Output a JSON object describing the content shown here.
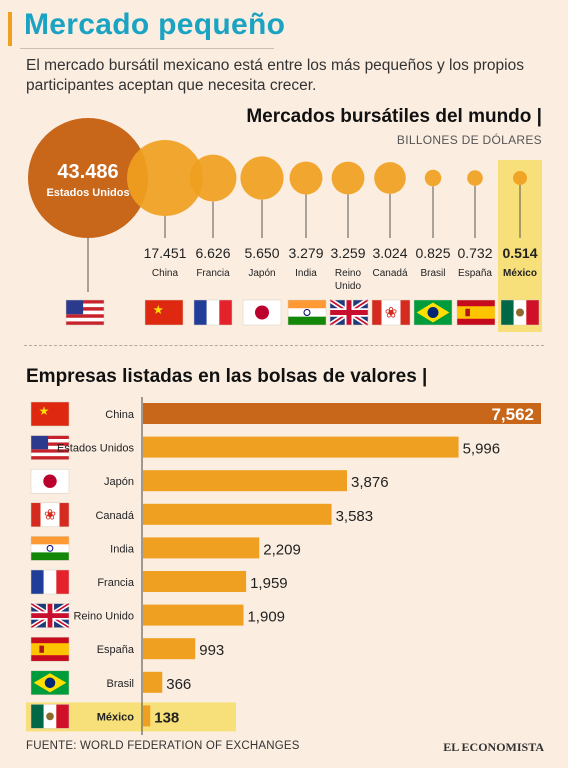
{
  "header": {
    "title": "Mercado pequeño",
    "subtitle": "El mercado bursátil mexicano está entre los más pequeños y los propios participantes aceptan que necesita crecer."
  },
  "section1": {
    "title": "Mercados bursátiles del mundo |",
    "unit": "BILLONES DE DÓLARES"
  },
  "section2": {
    "title": "Empresas listadas en las bolsas de valores |"
  },
  "footer": {
    "source": "FUENTE: WORLD FEDERATION OF EXCHANGES",
    "brand": "EL ECONOMISTA"
  },
  "colors": {
    "bubble": "#f0a020",
    "largest": "#c8661a",
    "highlight": "#f7e07a",
    "background": "#fbeee1"
  },
  "chart_data": [
    {
      "type": "bubble",
      "title": "Mercados bursátiles del mundo",
      "unit": "BILLONES DE DÓLARES",
      "categories": [
        "Estados Unidos",
        "China",
        "Francia",
        "Japón",
        "India",
        "Reino Unido",
        "Canadá",
        "Brasil",
        "España",
        "México"
      ],
      "category_labels": [
        [
          "Estados Unidos"
        ],
        [
          "China"
        ],
        [
          "Francia"
        ],
        [
          "Japón"
        ],
        [
          "India"
        ],
        [
          "Reino",
          "Unido"
        ],
        [
          "Canadá"
        ],
        [
          "Brasil"
        ],
        [
          "España"
        ],
        [
          "México"
        ]
      ],
      "values": [
        43.486,
        17.451,
        6.626,
        5.65,
        3.279,
        3.259,
        3.024,
        0.825,
        0.732,
        0.514
      ],
      "value_labels": [
        "43.486",
        "17.451",
        "6.626",
        "5.650",
        "3.279",
        "3.259",
        "3.024",
        "0.825",
        "0.732",
        "0.514"
      ],
      "flags": [
        "us",
        "cn",
        "fr",
        "jp",
        "in",
        "gb",
        "ca",
        "br",
        "es",
        "mx"
      ],
      "highlight": "México"
    },
    {
      "type": "bar",
      "orientation": "horizontal",
      "title": "Empresas listadas en las bolsas de valores",
      "categories": [
        "China",
        "Estados Unidos",
        "Japón",
        "Canadá",
        "India",
        "Francia",
        "Reino Unido",
        "España",
        "Brasil",
        "México"
      ],
      "values": [
        7562,
        5996,
        3876,
        3583,
        2209,
        1959,
        1909,
        993,
        366,
        138
      ],
      "value_labels": [
        "7,562",
        "5,996",
        "3,876",
        "3,583",
        "2,209",
        "1,959",
        "1,909",
        "993",
        "366",
        "138"
      ],
      "flags": [
        "cn",
        "us",
        "jp",
        "ca",
        "in",
        "fr",
        "gb",
        "es",
        "br",
        "mx"
      ],
      "highlight": "México"
    }
  ]
}
